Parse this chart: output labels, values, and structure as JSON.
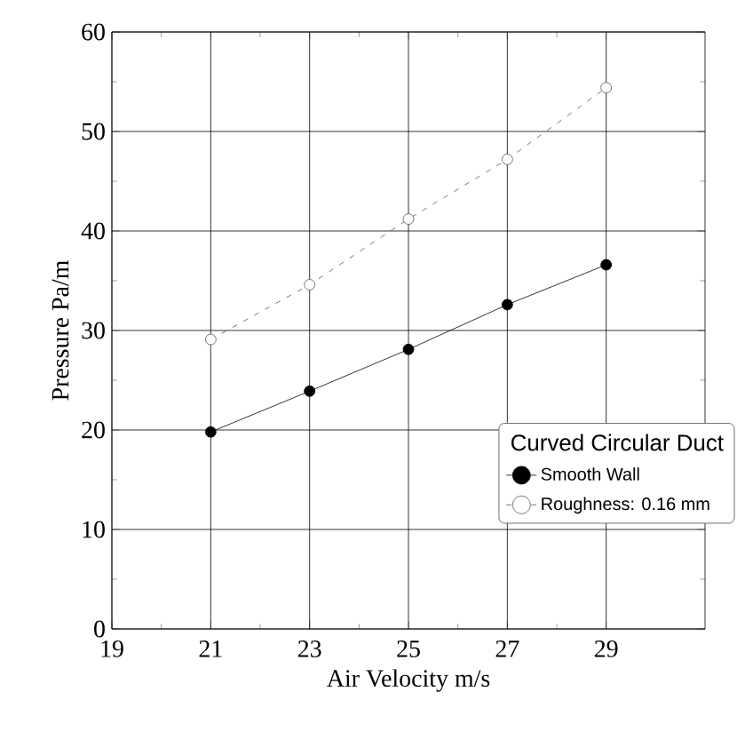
{
  "chart_data": {
    "type": "line",
    "xlabel": "Air Velocity m/s",
    "ylabel": "Pressure Pa/m",
    "legend_title": "Curved Circular Duct",
    "x": [
      21,
      23,
      25,
      27,
      29
    ],
    "series": [
      {
        "name": "Smooth Wall",
        "color": "#000000",
        "line_style": "solid",
        "values": [
          19.8,
          23.9,
          28.1,
          32.6,
          36.6
        ]
      },
      {
        "name": "Roughness: 0.16 mm",
        "color": "#555555",
        "line_style": "dashed",
        "values": [
          29.1,
          34.6,
          41.2,
          47.2,
          54.4
        ]
      }
    ],
    "xlim": [
      19,
      31
    ],
    "ylim": [
      0,
      60
    ],
    "xticks": [
      19,
      21,
      23,
      25,
      27,
      29
    ],
    "yticks": [
      0,
      10,
      20,
      30,
      40,
      50,
      60
    ],
    "grid": true,
    "legend": "bottom right",
    "marker": "circle"
  }
}
